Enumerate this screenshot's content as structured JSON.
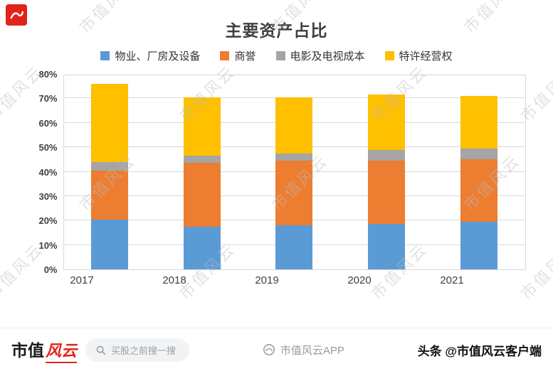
{
  "chart_data": {
    "type": "bar",
    "stacked": true,
    "title": "主要资产占比",
    "categories": [
      "2017",
      "2018",
      "2019",
      "2020",
      "2021"
    ],
    "series": [
      {
        "name": "物业、厂房及设备",
        "color": "#5B9BD5",
        "values": [
          20.5,
          17.5,
          18,
          18.5,
          19.5
        ]
      },
      {
        "name": "商誉",
        "color": "#ED7D31",
        "values": [
          20,
          26,
          26.5,
          26,
          25.5
        ]
      },
      {
        "name": "电影及电视成本",
        "color": "#A5A5A5",
        "values": [
          3.5,
          3,
          3,
          4.5,
          4.5
        ]
      },
      {
        "name": "特许经营权",
        "color": "#FFC000",
        "values": [
          32,
          24,
          23,
          22.5,
          21.5
        ]
      }
    ],
    "ylim": [
      0,
      80
    ],
    "ytick_step": 10,
    "yticks": [
      "0%",
      "10%",
      "20%",
      "30%",
      "40%",
      "50%",
      "60%",
      "70%",
      "80%"
    ],
    "grid": true,
    "legend_position": "top"
  },
  "watermark": {
    "text": "市值风云"
  },
  "footer": {
    "brand_black": "市值",
    "brand_red": "风云",
    "search_placeholder": "买股之前搜一搜",
    "app_label": "市值风云APP",
    "toutiao": "头条 @市值风云客户端"
  },
  "colors": {
    "brand_red": "#e2231a",
    "grid": "#d9d9d9",
    "watermark": "#bdbdbd"
  }
}
